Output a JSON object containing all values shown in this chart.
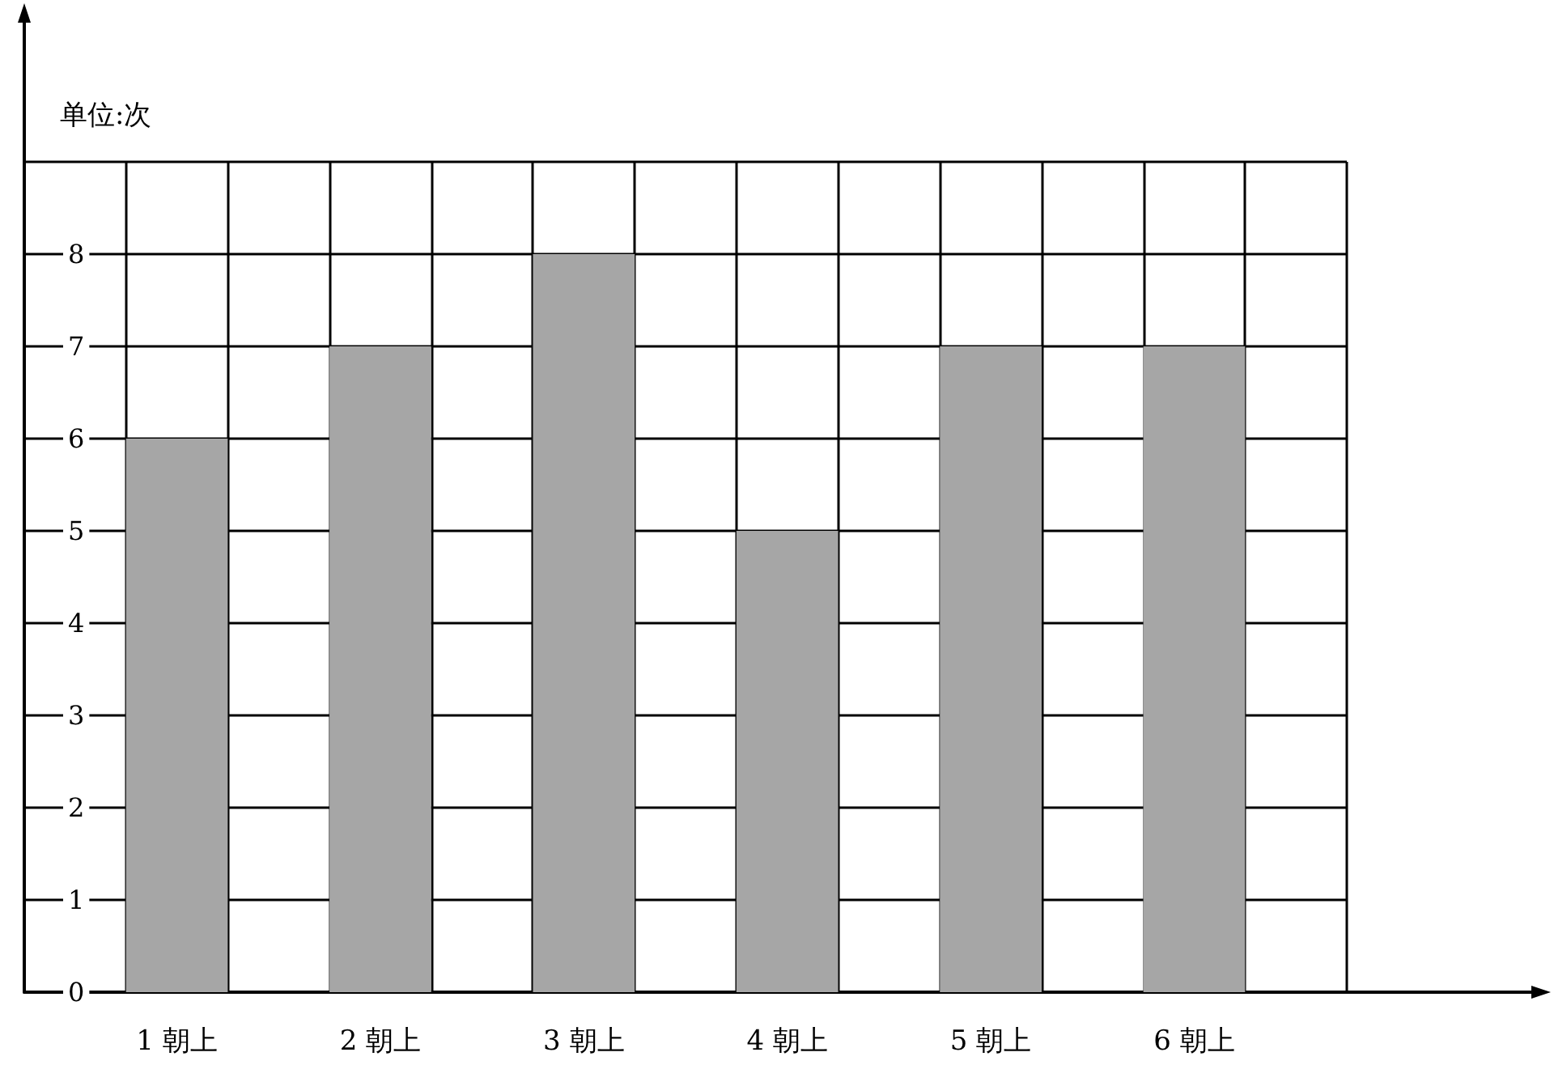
{
  "chart_data": {
    "type": "bar",
    "ylabel": "单位:次",
    "categories": [
      null,
      "1 朝上",
      null,
      "2 朝上",
      null,
      "3 朝上",
      null,
      "4 朝上",
      null,
      "5 朝上",
      null,
      "6 朝上",
      null
    ],
    "values": [
      null,
      6,
      null,
      7,
      null,
      8,
      null,
      5,
      null,
      7,
      null,
      7,
      null
    ],
    "color": "#a6a6a6",
    "ylim": [
      0,
      9
    ],
    "yticks": [
      {
        "value": 0,
        "label": "0"
      },
      1,
      2,
      3,
      4,
      5,
      6,
      7,
      8,
      {
        "value": 9,
        "label": null
      }
    ],
    "grid": true
  }
}
